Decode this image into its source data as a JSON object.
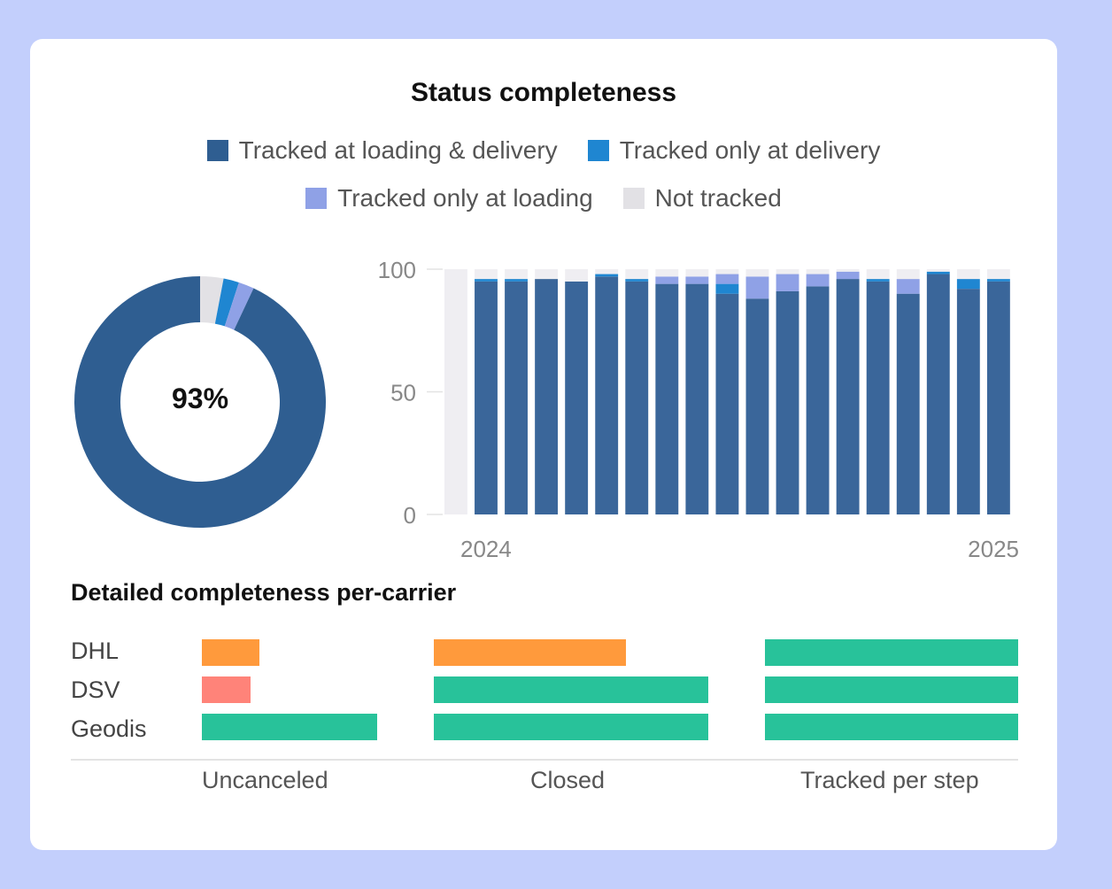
{
  "title": "Status completeness",
  "legend": [
    {
      "label": "Tracked at loading & delivery",
      "color": "#2f5e91"
    },
    {
      "label": "Tracked only at delivery",
      "color": "#1f86d1"
    },
    {
      "label": "Tracked only at loading",
      "color": "#8fa1e6"
    },
    {
      "label": "Not tracked",
      "color": "#e2e1e5"
    }
  ],
  "donut_label": "93%",
  "section_title": "Detailed completeness per-carrier",
  "carriers": [
    "DHL",
    "DSV",
    "Geodis"
  ],
  "column_labels": [
    "Uncanceled",
    "Closed",
    "Tracked per step"
  ],
  "chart_data": [
    {
      "type": "pie",
      "variant": "donut",
      "center_label": "93%",
      "values": [
        93,
        2,
        2,
        3
      ],
      "labels": [
        "Tracked at loading & delivery",
        "Tracked only at delivery",
        "Tracked only at loading",
        "Not tracked"
      ],
      "colors": [
        "#2f5e91",
        "#1f86d1",
        "#8fa1e6",
        "#e2e1e5"
      ]
    },
    {
      "type": "bar",
      "stacked": true,
      "ylim": [
        0,
        100
      ],
      "yticks": [
        0,
        50,
        100
      ],
      "x_start_label": "2024",
      "x_end_label": "2025",
      "bar_count": 19,
      "series": [
        {
          "name": "Tracked at loading & delivery",
          "color": "#3a669a",
          "values": [
            0,
            95,
            95,
            96,
            95,
            97,
            95,
            94,
            94,
            90,
            88,
            91,
            93,
            96,
            95,
            90,
            98,
            92,
            95
          ]
        },
        {
          "name": "Tracked only at delivery",
          "color": "#1f86d1",
          "values": [
            0,
            1,
            1,
            0,
            0,
            1,
            1,
            0,
            0,
            4,
            0,
            0,
            0,
            0,
            1,
            0,
            1,
            4,
            1
          ]
        },
        {
          "name": "Tracked only at loading",
          "color": "#8fa1e6",
          "values": [
            0,
            0,
            0,
            0,
            0,
            0,
            0,
            3,
            3,
            4,
            9,
            7,
            5,
            3,
            0,
            6,
            0,
            0,
            0
          ]
        },
        {
          "name": "Not tracked",
          "color": "#efeef2",
          "values": [
            100,
            4,
            4,
            4,
            5,
            2,
            4,
            3,
            3,
            2,
            3,
            2,
            2,
            1,
            4,
            4,
            1,
            4,
            4
          ]
        }
      ]
    },
    {
      "type": "bar",
      "orientation": "horizontal",
      "categories": [
        "DHL",
        "DSV",
        "Geodis"
      ],
      "panels": [
        {
          "name": "Uncanceled",
          "values": [
            33,
            28,
            100
          ],
          "colors": [
            "#ff9a3c",
            "#ff8379",
            "#28c29a"
          ]
        },
        {
          "name": "Closed",
          "values": [
            70,
            100,
            100
          ],
          "colors": [
            "#ff9a3c",
            "#28c29a",
            "#28c29a"
          ]
        },
        {
          "name": "Tracked per step",
          "values": [
            100,
            100,
            100
          ],
          "colors": [
            "#28c29a",
            "#28c29a",
            "#28c29a"
          ]
        }
      ]
    }
  ]
}
